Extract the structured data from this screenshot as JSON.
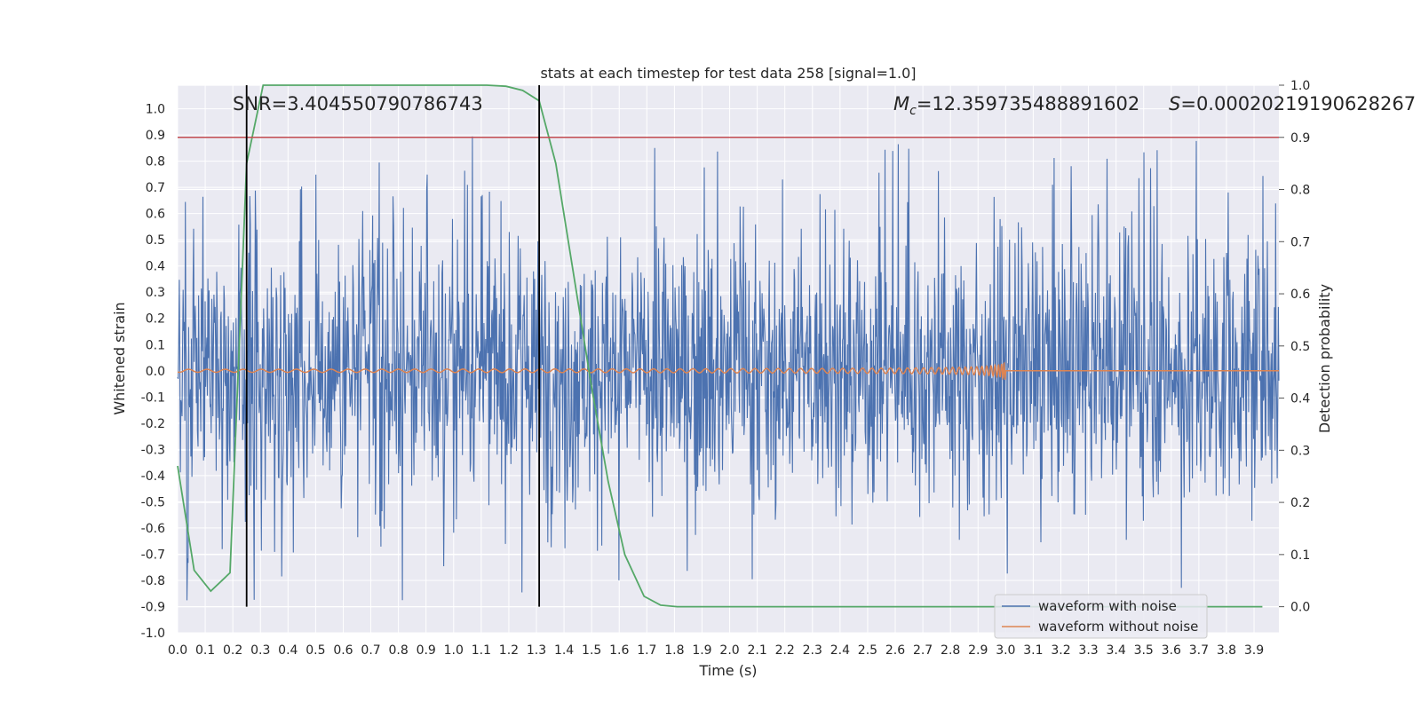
{
  "chart_data": {
    "type": "line",
    "title": "stats at each timestep for test data 258 [signal=1.0]",
    "xlabel": "Time (s)",
    "ylabel": "Whitened strain",
    "y2label": "Detection probability",
    "xlim": [
      0.0,
      3.99
    ],
    "ylim": [
      -1.0,
      1.09
    ],
    "y2lim": [
      -0.05,
      1.0
    ],
    "x_ticks": [
      "0.0",
      "0.1",
      "0.2",
      "0.3",
      "0.4",
      "0.5",
      "0.6",
      "0.7",
      "0.8",
      "0.9",
      "1.0",
      "1.1",
      "1.2",
      "1.3",
      "1.4",
      "1.5",
      "1.6",
      "1.7",
      "1.8",
      "1.9",
      "2.0",
      "2.1",
      "2.2",
      "2.3",
      "2.4",
      "2.5",
      "2.6",
      "2.7",
      "2.8",
      "2.9",
      "3.0",
      "3.1",
      "3.2",
      "3.3",
      "3.4",
      "3.5",
      "3.6",
      "3.7",
      "3.8",
      "3.9"
    ],
    "y_ticks": [
      "1.0",
      "0.9",
      "0.8",
      "0.7",
      "0.6",
      "0.5",
      "0.4",
      "0.3",
      "0.2",
      "0.1",
      "0.0",
      "-0.1",
      "-0.2",
      "-0.3",
      "-0.4",
      "-0.5",
      "-0.6",
      "-0.7",
      "-0.8",
      "-0.9",
      "-1.0"
    ],
    "y2_ticks": [
      "1.0",
      "0.9",
      "0.8",
      "0.7",
      "0.6",
      "0.5",
      "0.4",
      "0.3",
      "0.2",
      "0.1",
      "0.0"
    ],
    "annotations": {
      "snr": "SNR=3.404550790786743",
      "mc_symbol": "M",
      "mc_sub": "c",
      "mc_value": "=12.359735488891602",
      "s_symbol": "S",
      "s_value": "=0.00020219190628267"
    },
    "threshold_line": {
      "y2": 0.9,
      "color": "#c44e52"
    },
    "vertical_lines": [
      0.25,
      1.31
    ],
    "vertical_line_span_y2": [
      0.0,
      1.0
    ],
    "detection_probability": {
      "color": "#55a868",
      "x": [
        0.0,
        0.06,
        0.12,
        0.19,
        0.25,
        0.31,
        0.37,
        0.44,
        0.5,
        0.56,
        0.62,
        0.69,
        0.75,
        0.81,
        0.87,
        0.94,
        1.0,
        1.06,
        1.12,
        1.19,
        1.25,
        1.31,
        1.37,
        1.44,
        1.5,
        1.56,
        1.62,
        1.69,
        1.75,
        1.81,
        1.87,
        2.0,
        2.5,
        3.0,
        3.5,
        3.93
      ],
      "y": [
        0.27,
        0.07,
        0.03,
        0.065,
        0.85,
        1.0,
        1.0,
        1.0,
        1.0,
        1.0,
        1.0,
        1.0,
        1.0,
        1.0,
        1.0,
        1.0,
        1.0,
        1.0,
        1.0,
        0.998,
        0.99,
        0.97,
        0.85,
        0.62,
        0.42,
        0.24,
        0.1,
        0.02,
        0.003,
        0.0,
        0.0,
        0.0,
        0.0,
        0.0,
        0.0,
        0.0
      ]
    },
    "series": [
      {
        "name": "waveform with noise",
        "color": "#4c72b0"
      },
      {
        "name": "waveform without noise",
        "color": "#dd8452"
      }
    ],
    "legend_placement": "lower-right",
    "grid": true
  }
}
